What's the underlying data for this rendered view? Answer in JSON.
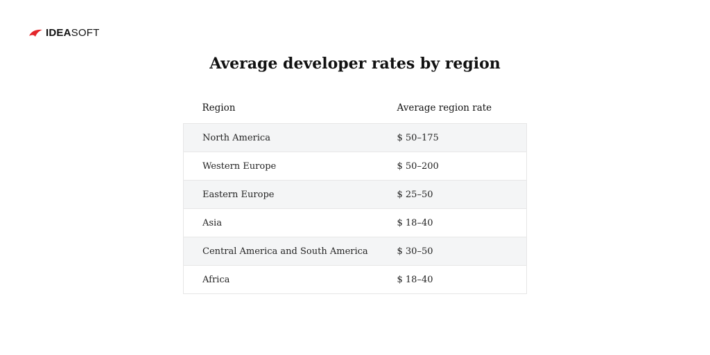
{
  "brand": {
    "name_bold": "IDEA",
    "name_light": "SOFT",
    "accent_color": "#e3262b"
  },
  "chart_data": {
    "type": "table",
    "title": "Average developer rates by region",
    "columns": [
      "Region",
      "Average region rate"
    ],
    "rows": [
      {
        "region": "North America",
        "rate": "$ 50–175"
      },
      {
        "region": "Western Europe",
        "rate": "$ 50–200"
      },
      {
        "region": "Eastern Europe",
        "rate": "$ 25–50"
      },
      {
        "region": "Asia",
        "rate": "$ 18–40"
      },
      {
        "region": "Central America and South America",
        "rate": "$ 30–50"
      },
      {
        "region": "Africa",
        "rate": "$ 18–40"
      }
    ]
  }
}
